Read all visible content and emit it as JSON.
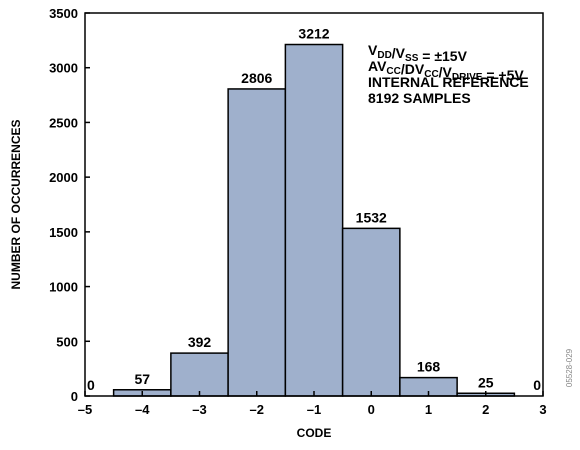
{
  "chart_data": {
    "type": "bar",
    "title": "",
    "xlabel": "CODE",
    "ylabel": "NUMBER OF OCCURRENCES",
    "xlim": [
      -5,
      3
    ],
    "ylim": [
      0,
      3500
    ],
    "xticks": [
      -5,
      -4,
      -3,
      -2,
      -1,
      0,
      1,
      2,
      3
    ],
    "xtick_labels": [
      "–5",
      "–4",
      "–3",
      "–2",
      "–1",
      "0",
      "1",
      "2",
      "3"
    ],
    "yticks": [
      0,
      500,
      1000,
      1500,
      2000,
      2500,
      3000,
      3500
    ],
    "ytick_labels": [
      "0",
      "500",
      "1000",
      "1500",
      "2000",
      "2500",
      "3000",
      "3500"
    ],
    "grid": false,
    "bar_color": "#9fb0cc",
    "bars": [
      {
        "code": -5,
        "value": 0,
        "label": "0"
      },
      {
        "code": -4,
        "value": 57,
        "label": "57"
      },
      {
        "code": -3,
        "value": 392,
        "label": "392"
      },
      {
        "code": -2,
        "value": 2806,
        "label": "2806"
      },
      {
        "code": -1,
        "value": 3212,
        "label": "3212"
      },
      {
        "code": 0,
        "value": 1532,
        "label": "1532"
      },
      {
        "code": 1,
        "value": 168,
        "label": "168"
      },
      {
        "code": 2,
        "value": 25,
        "label": "25"
      },
      {
        "code": 3,
        "value": 0,
        "label": "0"
      }
    ],
    "annotation": {
      "lines": [
        [
          {
            "t": "V"
          },
          {
            "t": "DD",
            "sub": true
          },
          {
            "t": "/V"
          },
          {
            "t": "SS",
            "sub": true
          },
          {
            "t": " = ±15V"
          }
        ],
        [
          {
            "t": "AV"
          },
          {
            "t": "CC",
            "sub": true
          },
          {
            "t": "/DV"
          },
          {
            "t": "CC",
            "sub": true
          },
          {
            "t": "/V"
          },
          {
            "t": "DRIVE",
            "sub": true
          },
          {
            "t": " = +5V"
          }
        ],
        [
          {
            "t": "INTERNAL REFERENCE"
          }
        ],
        [
          {
            "t": "8192 SAMPLES"
          }
        ]
      ]
    },
    "figure_id": "05528-029"
  }
}
